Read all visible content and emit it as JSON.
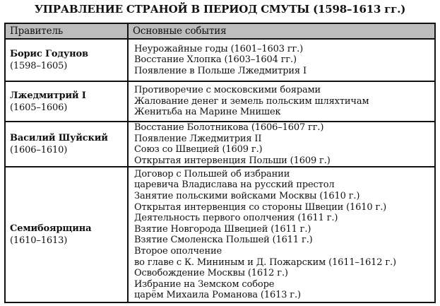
{
  "title": "УПРАВЛЕНИЕ СТРАНОЙ В ПЕРИОД СМУТЫ (1598–1613 гг.)",
  "table": {
    "header": [
      "Правитель",
      "Основные события"
    ],
    "rows": [
      {
        "ruler": "Борис Годунов",
        "years": "(1598–1605)",
        "events": [
          "Неурожайные годы (1601–1603 гг.)",
          "Восстание Хлопка (1603–1604 гг.)",
          "Появление в Польше Лжедмитрия I"
        ]
      },
      {
        "ruler": "Лжедмитрий I",
        "years": "(1605–1606)",
        "events": [
          "Противоречие с московскими боярами",
          "Жалование денег и земель польским шляхтичам",
          "Женитьба на Марине Мнишек"
        ]
      },
      {
        "ruler": "Василий Шуйский",
        "years": "(1606–1610)",
        "events": [
          "Восстание Болотникова (1606–1607 гг.)",
          "Появление Лжедмитрия II",
          "Союз со Швецией (1609 г.)",
          "Открытая интервенция Польши (1609 г.)"
        ]
      },
      {
        "ruler": "Семибоярщина",
        "years": "(1610–1613)",
        "events": [
          "Договор с Польшей об избрании",
          "царевича Владислава на русский престол",
          "Занятие польскими войсками Москвы (1610 г.)",
          "Открытая интервенция со стороны Швеции (1610 г.)",
          "Деятельность первого ополчения (1611 г.)",
          "Взятие Новгорода Швецией (1611 г.)",
          "Взятие Смоленска Польшей (1611 г.)",
          "Второе ополчение",
          "во главе с К. Мининым и Д. Пожарским (1611–1612 г.)",
          "Освобождение Москвы (1612 г.)",
          "Избрание на Земском соборе",
          "царём Михаила Романова (1613 г.)"
        ]
      }
    ]
  }
}
